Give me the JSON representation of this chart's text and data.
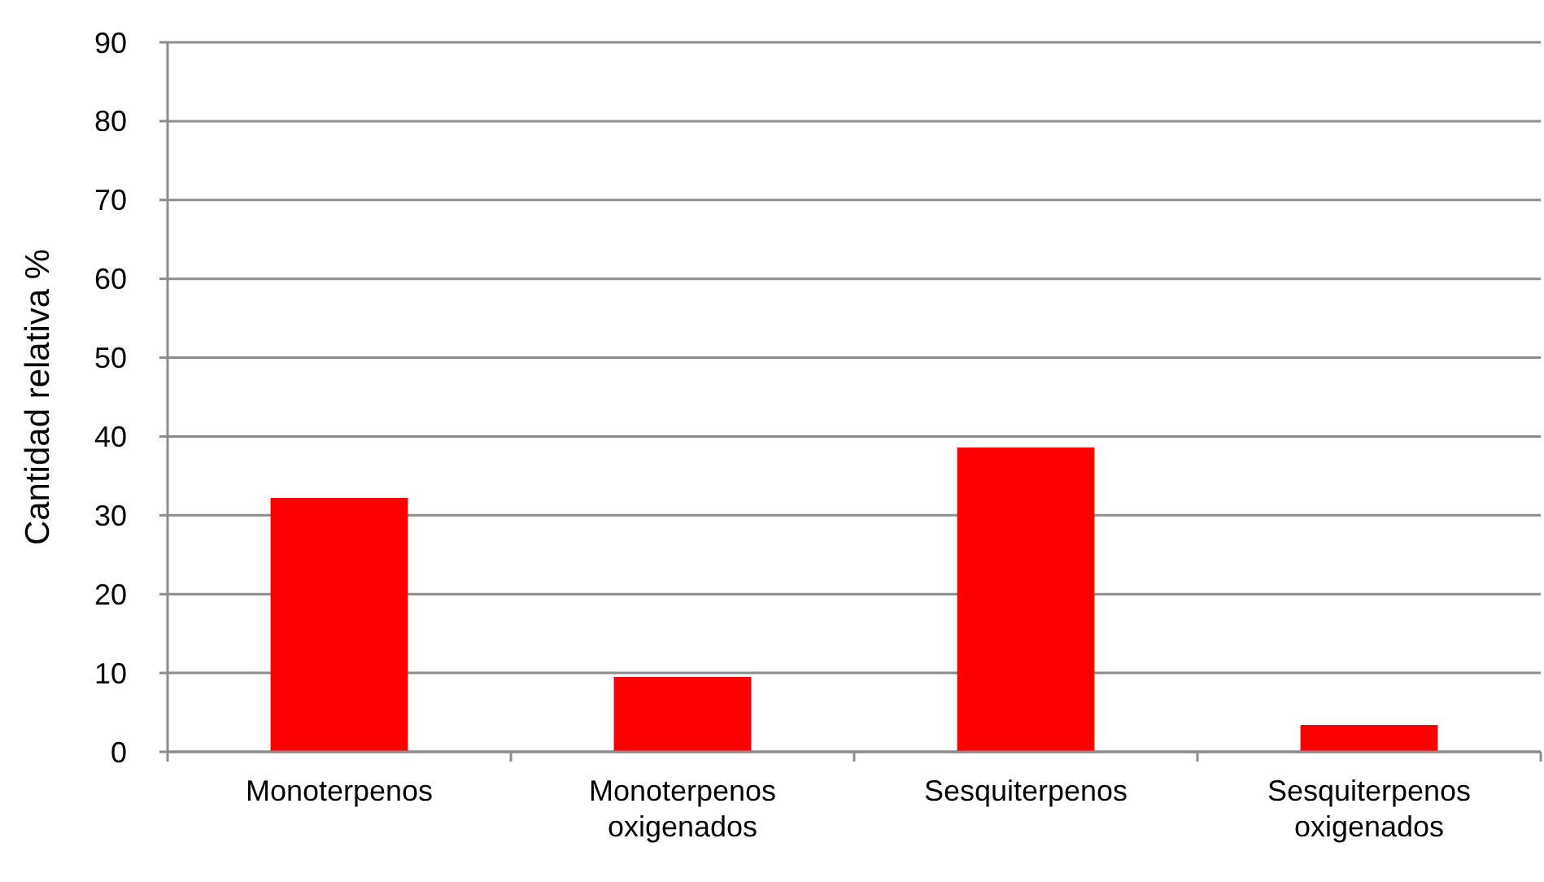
{
  "chart_data": {
    "type": "bar",
    "ylabel": "Cantidad relativa %",
    "categories": [
      "Monoterpenos",
      "Monoterpenos oxigenados",
      "Sesquiterpenos",
      "Sesquiterpenos oxigenados"
    ],
    "values": [
      32.2,
      9.5,
      38.6,
      3.4
    ],
    "color": "#ff0000",
    "ylim": [
      0,
      90
    ],
    "yticks": [
      0,
      10,
      20,
      30,
      40,
      50,
      60,
      70,
      80,
      90
    ],
    "grid": "y"
  }
}
